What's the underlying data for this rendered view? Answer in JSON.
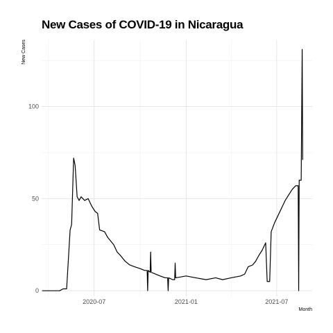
{
  "chart_data": {
    "type": "line",
    "title": "New Cases of COVID-19 in Nicaragua",
    "xlabel": "Month",
    "ylabel": "New Cases",
    "xlim": [
      "2020-03-18",
      "2021-09-10"
    ],
    "ylim": [
      -3,
      136
    ],
    "x_ticks": [
      {
        "date": "2020-07-01",
        "label": "2020-07"
      },
      {
        "date": "2021-01-01",
        "label": "2021-01"
      },
      {
        "date": "2021-07-01",
        "label": "2021-07"
      }
    ],
    "y_ticks": [
      0,
      50,
      100
    ],
    "grid": true,
    "color": "#000000",
    "series": [
      {
        "points": [
          [
            "2020-03-19",
            0
          ],
          [
            "2020-03-26",
            0
          ],
          [
            "2020-04-02",
            0
          ],
          [
            "2020-04-09",
            0
          ],
          [
            "2020-04-16",
            0
          ],
          [
            "2020-04-23",
            0
          ],
          [
            "2020-04-30",
            1
          ],
          [
            "2020-05-07",
            1
          ],
          [
            "2020-05-14",
            33
          ],
          [
            "2020-05-17",
            36
          ],
          [
            "2020-05-21",
            72
          ],
          [
            "2020-05-24",
            68
          ],
          [
            "2020-05-28",
            51
          ],
          [
            "2020-06-01",
            49
          ],
          [
            "2020-06-05",
            51
          ],
          [
            "2020-06-12",
            49
          ],
          [
            "2020-06-19",
            50
          ],
          [
            "2020-06-26",
            46
          ],
          [
            "2020-07-03",
            43
          ],
          [
            "2020-07-08",
            42
          ],
          [
            "2020-07-12",
            33
          ],
          [
            "2020-07-22",
            32
          ],
          [
            "2020-07-28",
            29
          ],
          [
            "2020-08-03",
            27
          ],
          [
            "2020-08-09",
            25
          ],
          [
            "2020-08-16",
            21
          ],
          [
            "2020-08-23",
            19
          ],
          [
            "2020-09-01",
            16
          ],
          [
            "2020-09-10",
            14
          ],
          [
            "2020-09-20",
            13
          ],
          [
            "2020-10-01",
            12
          ],
          [
            "2020-10-10",
            11
          ],
          [
            "2020-10-15",
            11
          ],
          [
            "2020-10-16",
            0
          ],
          [
            "2020-10-17",
            11
          ],
          [
            "2020-10-21",
            10
          ],
          [
            "2020-10-22",
            21
          ],
          [
            "2020-10-23",
            10
          ],
          [
            "2020-11-01",
            9
          ],
          [
            "2020-11-10",
            8
          ],
          [
            "2020-11-20",
            7
          ],
          [
            "2020-11-25",
            7
          ],
          [
            "2020-11-26",
            0
          ],
          [
            "2020-11-27",
            7
          ],
          [
            "2020-12-05",
            6
          ],
          [
            "2020-12-09",
            6
          ],
          [
            "2020-12-10",
            15
          ],
          [
            "2020-12-11",
            7
          ],
          [
            "2021-01-01",
            8
          ],
          [
            "2021-01-20",
            7
          ],
          [
            "2021-02-10",
            6
          ],
          [
            "2021-03-01",
            7
          ],
          [
            "2021-03-15",
            6
          ],
          [
            "2021-04-01",
            7
          ],
          [
            "2021-04-20",
            8
          ],
          [
            "2021-04-28",
            9
          ],
          [
            "2021-05-05",
            13
          ],
          [
            "2021-05-14",
            14
          ],
          [
            "2021-05-20",
            16
          ],
          [
            "2021-05-26",
            19
          ],
          [
            "2021-06-02",
            22
          ],
          [
            "2021-06-09",
            26
          ],
          [
            "2021-06-12",
            5
          ],
          [
            "2021-06-17",
            5
          ],
          [
            "2021-06-20",
            32
          ],
          [
            "2021-06-27",
            37
          ],
          [
            "2021-07-04",
            41
          ],
          [
            "2021-07-11",
            45
          ],
          [
            "2021-07-18",
            49
          ],
          [
            "2021-07-25",
            52
          ],
          [
            "2021-08-01",
            55
          ],
          [
            "2021-08-08",
            57
          ],
          [
            "2021-08-13",
            57
          ],
          [
            "2021-08-14",
            0
          ],
          [
            "2021-08-15",
            60
          ],
          [
            "2021-08-19",
            60
          ],
          [
            "2021-08-21",
            131
          ],
          [
            "2021-08-22",
            71
          ]
        ]
      }
    ]
  }
}
